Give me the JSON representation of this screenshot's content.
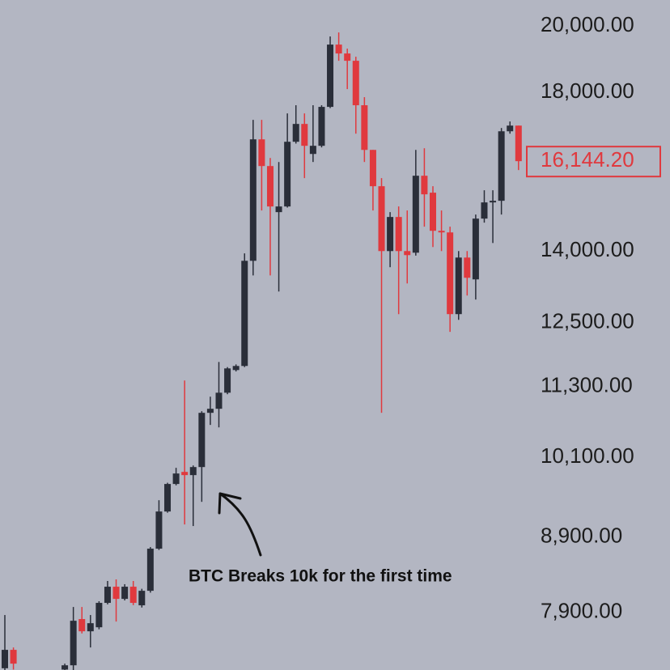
{
  "chart_data": {
    "type": "candlestick",
    "log_scale": true,
    "up_color": "#2a2e39",
    "down_color": "#e0393e",
    "ylim": [
      7210,
      20840
    ],
    "yticks": [
      {
        "value": 20000,
        "label": "20,000.00"
      },
      {
        "value": 18000,
        "label": "18,000.00"
      },
      {
        "value": 14000,
        "label": "14,000.00"
      },
      {
        "value": 12500,
        "label": "12,500.00"
      },
      {
        "value": 11300,
        "label": "11,300.00"
      },
      {
        "value": 10100,
        "label": "10,100.00"
      },
      {
        "value": 8900,
        "label": "8,900.00"
      },
      {
        "value": 7900,
        "label": "7,900.00"
      }
    ],
    "last_price": {
      "value": 16144.2,
      "label": "16,144.20"
    },
    "annotation": "BTC Breaks 10k for the first time",
    "open": [
      7230,
      7444,
      null,
      null,
      null,
      null,
      null,
      7215,
      7264,
      7816,
      7666,
      7715,
      8019,
      8227,
      8070,
      8227,
      7988,
      8174,
      8738,
      9268,
      9681,
      9868,
      9818,
      9944,
      10836,
      10906,
      11187,
      11596,
      11671,
      13787,
      16712,
      16020,
      14892,
      15026,
      16648,
      17125,
      16330,
      16542,
      17594,
      19419,
      19147,
      18927,
      17640,
      16435,
      15516,
      14001,
      14778,
      14001,
      13965,
      15776,
      15358,
      14458,
      14421,
      12670,
      13858,
      13387,
      14740,
      15123,
      15162,
      16927,
      17080
    ],
    "high": [
      7866,
      7472,
      null,
      null,
      null,
      null,
      null,
      7283,
      7967,
      7967,
      7866,
      8040,
      8302,
      8323,
      8260,
      8302,
      8200,
      8760,
      9435,
      9700,
      9932,
      11405,
      9969,
      10864,
      11117,
      11745,
      11650,
      11700,
      13950,
      17236,
      17236,
      16226,
      16123,
      17413,
      17640,
      17413,
      17640,
      17640,
      19670,
      19796,
      19295,
      19049,
      17867,
      16435,
      15716,
      14892,
      15026,
      14931,
      16435,
      16478,
      15516,
      14931,
      14553,
      14001,
      14001,
      14835,
      15417,
      15417,
      17015,
      17192,
      17080
    ],
    "low": [
      7210,
      7215,
      null,
      null,
      null,
      null,
      null,
      7210,
      7210,
      7640,
      7472,
      7690,
      8000,
      7785,
      8050,
      7990,
      7960,
      8150,
      8720,
      9250,
      9660,
      9080,
      9057,
      9411,
      10630,
      10589,
      11160,
      11570,
      11650,
      13472,
      14931,
      13472,
      13132,
      15000,
      16600,
      15716,
      16123,
      16500,
      17560,
      18927,
      18097,
      16863,
      16123,
      14931,
      10836,
      13648,
      12670,
      13301,
      13900,
      14553,
      14091,
      14001,
      12318,
      12556,
      13049,
      12966,
      14646,
      14181,
      14835,
      16863,
      15918
    ],
    "close": [
      7444,
      7283,
      null,
      null,
      null,
      null,
      null,
      7264,
      7795,
      7666,
      7765,
      8019,
      8227,
      8070,
      8227,
      8019,
      8174,
      8738,
      9268,
      9681,
      9843,
      9818,
      9944,
      10836,
      10906,
      11187,
      11626,
      11671,
      13787,
      16712,
      16020,
      15026,
      15026,
      16648,
      17125,
      16542,
      16542,
      17594,
      19419,
      19147,
      18927,
      17640,
      16435,
      15516,
      14001,
      14778,
      14001,
      13912,
      15776,
      15318,
      14458,
      14421,
      12670,
      13858,
      13421,
      14740,
      15123,
      15162,
      16927,
      17080,
      16144.2
    ]
  }
}
